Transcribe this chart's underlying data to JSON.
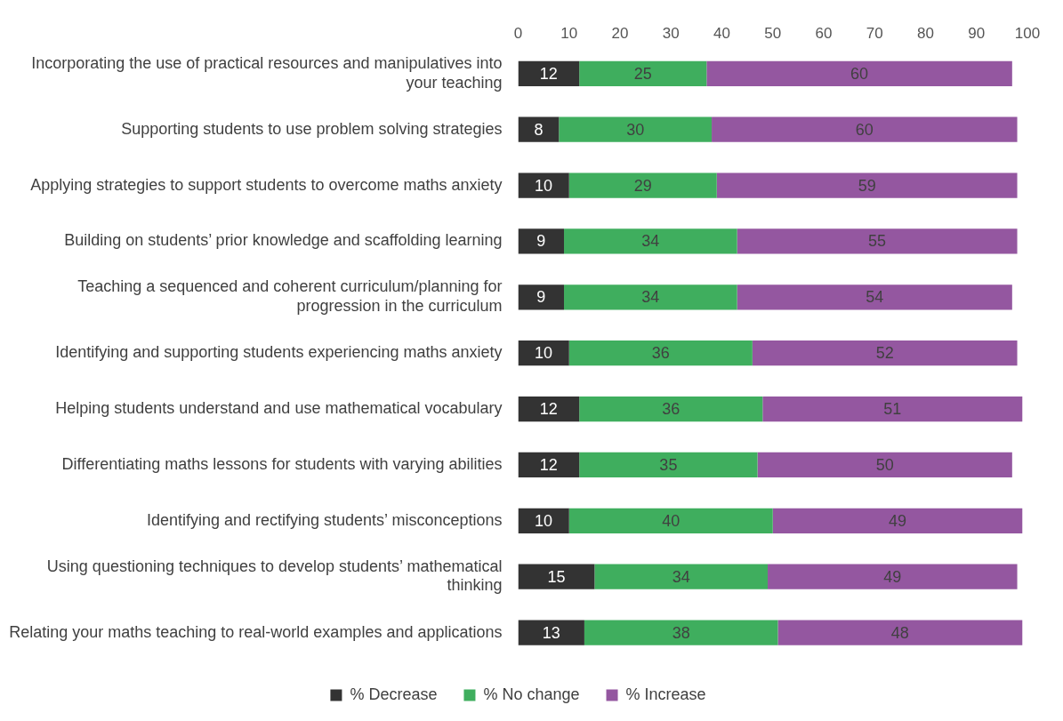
{
  "chart_data": {
    "type": "bar",
    "orientation": "horizontal",
    "stacked": true,
    "data_labels": true,
    "legend": "bottom",
    "grid": false,
    "categories": [
      "Incorporating the use of practical resources and manipulatives into your teaching",
      "Supporting students to use problem solving strategies",
      "Applying strategies to support students to overcome maths anxiety",
      "Building on students’ prior knowledge and scaffolding learning",
      "Teaching a sequenced and coherent curriculum/planning for progression in the curriculum",
      "Identifying and supporting students experiencing maths anxiety",
      "Helping students understand and use mathematical vocabulary",
      "Differentiating maths lessons for students with varying abilities",
      "Identifying and rectifying students’ misconceptions",
      "Using questioning techniques to develop students’ mathematical thinking",
      "Relating your maths teaching to real-world examples and applications"
    ],
    "xlim": [
      0,
      100
    ],
    "xticks": [
      0,
      10,
      20,
      30,
      40,
      50,
      60,
      70,
      80,
      90,
      100
    ],
    "series": [
      {
        "name": "% Decrease",
        "color": "#333333",
        "values": [
          12,
          8,
          10,
          9,
          9,
          10,
          12,
          12,
          10,
          15,
          13
        ]
      },
      {
        "name": "% No change",
        "color": "#3fae5e",
        "values": [
          25,
          30,
          29,
          34,
          34,
          36,
          36,
          35,
          40,
          34,
          38
        ]
      },
      {
        "name": "% Increase",
        "color": "#9457a0",
        "values": [
          60,
          60,
          59,
          55,
          54,
          52,
          51,
          50,
          49,
          49,
          48
        ]
      }
    ]
  }
}
